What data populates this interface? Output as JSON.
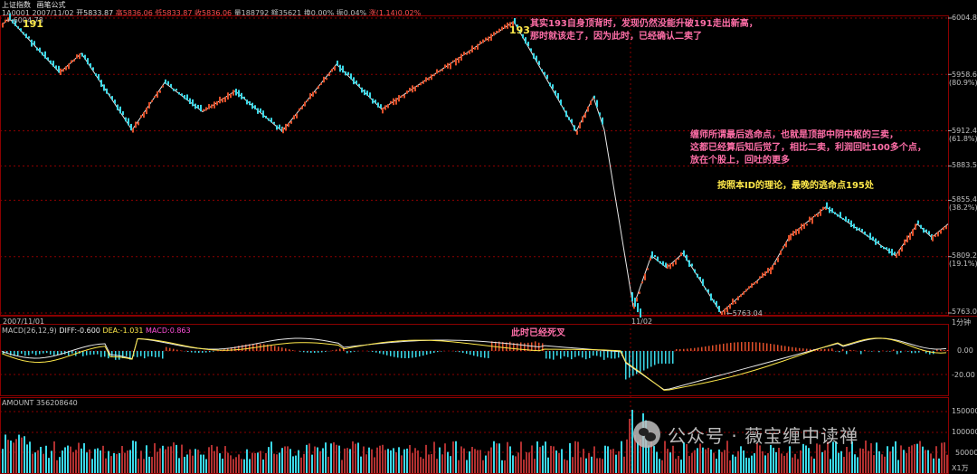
{
  "header": {
    "instrument": "上证指数",
    "formula": "画笔公式",
    "code_date": "1A0001 2007/11/02",
    "open": "开5833.87",
    "high": "高5836.06",
    "low": "低5833.87",
    "close": "收5836.06",
    "volume": "量188792",
    "turnover": "额35621",
    "change_rate": "换0.00%",
    "amplitude": "振0.04%",
    "change": "涨(1.14)0.02%"
  },
  "price_axis": {
    "ticks": [
      "6004.8",
      "5958.6",
      "(80.9%)",
      "5912.4",
      "(61.8%)",
      "5883.5",
      "5855.4",
      "(38.2%)",
      "5809.2",
      "(19.1%)",
      "5763.0"
    ]
  },
  "price_labels": {
    "max_marker": "6004.78",
    "min_marker": "5763.04",
    "bi_191": "191",
    "bi_193": "193"
  },
  "time_axis": {
    "start": "2007/11/01",
    "mid": "11/02",
    "period": "1分钟"
  },
  "macd": {
    "title": "MACD(26,12,9)",
    "dif": "DIFF:-0.600",
    "dea": "DEA:-1.031",
    "macd": "MACD:0.863",
    "ticks": [
      "0.00",
      "-20.00"
    ]
  },
  "amount": {
    "title": "AMOUNT 356208640",
    "ticks": [
      "150000",
      "100000",
      "50000",
      "X1万"
    ]
  },
  "annotations": {
    "note_193_line1": "其实193自身顶背时，发现仍然没能升破191走出新高，",
    "note_193_line2": "那时就该走了，因为此时，已经确认二卖了",
    "note_escape_line1": "缠师所谓最后逃命点，也就是顶部中阴中枢的三卖，",
    "note_escape_line2": "这都已经算后知后觉了，相比二卖，利润回吐100多个点，",
    "note_escape_line3": "放在个股上，回吐的更多",
    "note_195": "按照本ID的理论，最晚的逃命点195处",
    "note_death_cross": "此时已经死叉"
  },
  "watermark": "公众号 · 薇宝缠中读禅",
  "colors": {
    "up": "#e0502a",
    "down": "#3ad8e8",
    "grid": "#8b0000",
    "annotation": "#ff6fa8",
    "note_yellow": "#ffe94a",
    "axis_text": "#c0c0c0"
  },
  "chart_data": {
    "type": "line",
    "title": "上证指数",
    "series": [
      {
        "name": "画笔",
        "x": [
          "11/01 open",
          "191",
          "low1",
          "high2",
          "low2",
          "high3",
          "low3",
          "high4",
          "low4",
          "high5",
          "low5",
          "193",
          "low6",
          "high6",
          "11/02",
          "bottom1",
          "high7",
          "low7",
          "high8",
          "bottom2",
          "high9",
          "low8",
          "195",
          "low9",
          "high10",
          "low10",
          "last"
        ],
        "values": [
          5999,
          6004.78,
          5960,
          5976,
          5913,
          5952,
          5928,
          5945,
          5912,
          5967,
          5930,
          6002,
          5912,
          5940,
          5913,
          5768,
          5810,
          5800,
          5812,
          5763.04,
          5800,
          5826,
          5850,
          5810,
          5836,
          5825,
          5836
        ]
      }
    ],
    "ylim": [
      5763.0,
      6004.8
    ]
  }
}
